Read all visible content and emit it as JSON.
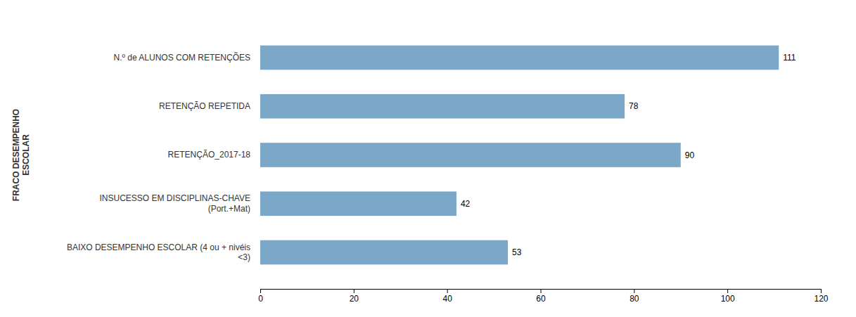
{
  "chart_data": {
    "type": "bar",
    "orientation": "horizontal",
    "ylabel": "FRACO DESEMPENHO\nESCOLAR",
    "categories": [
      "N.º de ALUNOS COM RETENÇÕES",
      "RETENÇÃO REPETIDA",
      "RETENÇÃO_2017-18",
      "INSUCESSO EM DISCIPLINAS-CHAVE\n(Port.+Mat)",
      "BAIXO DESEMPENHO ESCOLAR (4 ou + nivéis\n<3)"
    ],
    "values": [
      111,
      78,
      90,
      42,
      53
    ],
    "color": "#7BA7C9",
    "xlim": [
      0,
      120
    ],
    "xticks": [
      0,
      20,
      40,
      60,
      80,
      100,
      120
    ],
    "grid": false,
    "data_labels": true
  }
}
